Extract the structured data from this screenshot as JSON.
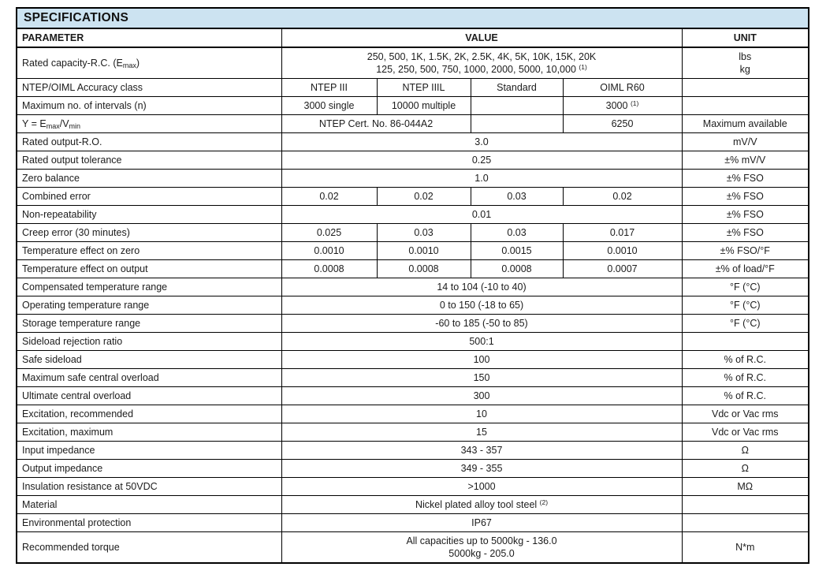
{
  "title": "SPECIFICATIONS",
  "colors": {
    "band_background": "#cce3f1",
    "border": "#000000",
    "text": "#1c1c1c",
    "page_background": "#ffffff"
  },
  "columns": {
    "parameter": "PARAMETER",
    "value": "VALUE",
    "unit": "UNIT"
  },
  "rows": [
    {
      "p": [
        "Rated capacity-R.C. (E",
        {
          "sub": "max"
        },
        ")"
      ],
      "v": [
        {
          "span": 4,
          "c": {
            "lines": [
              "250, 500, 1K, 1.5K, 2K, 2.5K, 4K, 5K, 10K, 15K, 20K",
              [
                "125, 250, 500, 750, 1000, 2000, 5000, 10,000 ",
                {
                  "sup": "(1)"
                }
              ]
            ]
          }
        }
      ],
      "u": {
        "lines": [
          "lbs",
          "kg"
        ]
      }
    },
    {
      "p": "NTEP/OIML Accuracy class",
      "v": [
        {
          "span": 1,
          "c": "NTEP III"
        },
        {
          "span": 1,
          "c": "NTEP IIIL"
        },
        {
          "span": 1,
          "c": "Standard"
        },
        {
          "span": 1,
          "c": "OIML R60"
        }
      ],
      "u": ""
    },
    {
      "p": "Maximum no. of intervals (n)",
      "v": [
        {
          "span": 1,
          "c": "3000 single"
        },
        {
          "span": 1,
          "c": "10000 multiple"
        },
        {
          "span": 1,
          "c": ""
        },
        {
          "span": 1,
          "c": [
            "3000 ",
            {
              "sup": "(1)"
            }
          ]
        }
      ],
      "u": ""
    },
    {
      "p": [
        "Y = E",
        {
          "sub": "max"
        },
        "/V",
        {
          "sub": "min"
        }
      ],
      "v": [
        {
          "span": 2,
          "c": "NTEP Cert. No. 86-044A2"
        },
        {
          "span": 1,
          "c": ""
        },
        {
          "span": 1,
          "c": "6250"
        }
      ],
      "u": "Maximum available"
    },
    {
      "p": "Rated output-R.O.",
      "v": [
        {
          "span": 4,
          "c": "3.0"
        }
      ],
      "u": "mV/V"
    },
    {
      "p": "Rated output tolerance",
      "v": [
        {
          "span": 4,
          "c": "0.25"
        }
      ],
      "u": "±% mV/V"
    },
    {
      "p": "Zero balance",
      "v": [
        {
          "span": 4,
          "c": "1.0"
        }
      ],
      "u": "±% FSO"
    },
    {
      "p": "Combined error",
      "v": [
        {
          "span": 1,
          "c": "0.02"
        },
        {
          "span": 1,
          "c": "0.02"
        },
        {
          "span": 1,
          "c": "0.03"
        },
        {
          "span": 1,
          "c": "0.02"
        }
      ],
      "u": "±% FSO"
    },
    {
      "p": "Non-repeatability",
      "v": [
        {
          "span": 4,
          "c": "0.01"
        }
      ],
      "u": "±% FSO"
    },
    {
      "p": "Creep error (30 minutes)",
      "v": [
        {
          "span": 1,
          "c": "0.025"
        },
        {
          "span": 1,
          "c": "0.03"
        },
        {
          "span": 1,
          "c": "0.03"
        },
        {
          "span": 1,
          "c": "0.017"
        }
      ],
      "u": "±% FSO"
    },
    {
      "p": "Temperature effect on zero",
      "v": [
        {
          "span": 1,
          "c": "0.0010"
        },
        {
          "span": 1,
          "c": "0.0010"
        },
        {
          "span": 1,
          "c": "0.0015"
        },
        {
          "span": 1,
          "c": "0.0010"
        }
      ],
      "u": "±% FSO/°F"
    },
    {
      "p": "Temperature effect on output",
      "v": [
        {
          "span": 1,
          "c": "0.0008"
        },
        {
          "span": 1,
          "c": "0.0008"
        },
        {
          "span": 1,
          "c": "0.0008"
        },
        {
          "span": 1,
          "c": "0.0007"
        }
      ],
      "u": "±% of load/°F"
    },
    {
      "p": "Compensated temperature range",
      "v": [
        {
          "span": 4,
          "c": "14 to 104 (-10 to 40)"
        }
      ],
      "u": "°F (°C)"
    },
    {
      "p": "Operating temperature range",
      "v": [
        {
          "span": 4,
          "c": "0 to 150 (-18 to 65)"
        }
      ],
      "u": "°F (°C)"
    },
    {
      "p": "Storage temperature range",
      "v": [
        {
          "span": 4,
          "c": "-60 to 185 (-50 to 85)"
        }
      ],
      "u": "°F (°C)"
    },
    {
      "p": "Sideload rejection ratio",
      "v": [
        {
          "span": 4,
          "c": "500:1"
        }
      ],
      "u": ""
    },
    {
      "p": "Safe sideload",
      "v": [
        {
          "span": 4,
          "c": "100"
        }
      ],
      "u": "% of R.C."
    },
    {
      "p": "Maximum safe central overload",
      "v": [
        {
          "span": 4,
          "c": "150"
        }
      ],
      "u": "% of R.C."
    },
    {
      "p": "Ultimate central overload",
      "v": [
        {
          "span": 4,
          "c": "300"
        }
      ],
      "u": "% of R.C."
    },
    {
      "p": "Excitation, recommended",
      "v": [
        {
          "span": 4,
          "c": "10"
        }
      ],
      "u": "Vdc or Vac rms"
    },
    {
      "p": "Excitation, maximum",
      "v": [
        {
          "span": 4,
          "c": "15"
        }
      ],
      "u": "Vdc or Vac rms"
    },
    {
      "p": "Input impedance",
      "v": [
        {
          "span": 4,
          "c": "343 - 357"
        }
      ],
      "u": "Ω"
    },
    {
      "p": "Output impedance",
      "v": [
        {
          "span": 4,
          "c": "349 - 355"
        }
      ],
      "u": "Ω"
    },
    {
      "p": "Insulation resistance at 50VDC",
      "v": [
        {
          "span": 4,
          "c": ">1000"
        }
      ],
      "u": "MΩ"
    },
    {
      "p": "Material",
      "v": [
        {
          "span": 4,
          "c": [
            "Nickel plated alloy tool steel ",
            {
              "sup": "(2)"
            }
          ]
        }
      ],
      "u": ""
    },
    {
      "p": "Environmental protection",
      "v": [
        {
          "span": 4,
          "c": "IP67"
        }
      ],
      "u": ""
    },
    {
      "p": "Recommended torque",
      "v": [
        {
          "span": 4,
          "c": {
            "lines": [
              "All capacities up to 5000kg - 136.0",
              "5000kg - 205.0"
            ]
          }
        }
      ],
      "u": "N*m"
    }
  ]
}
